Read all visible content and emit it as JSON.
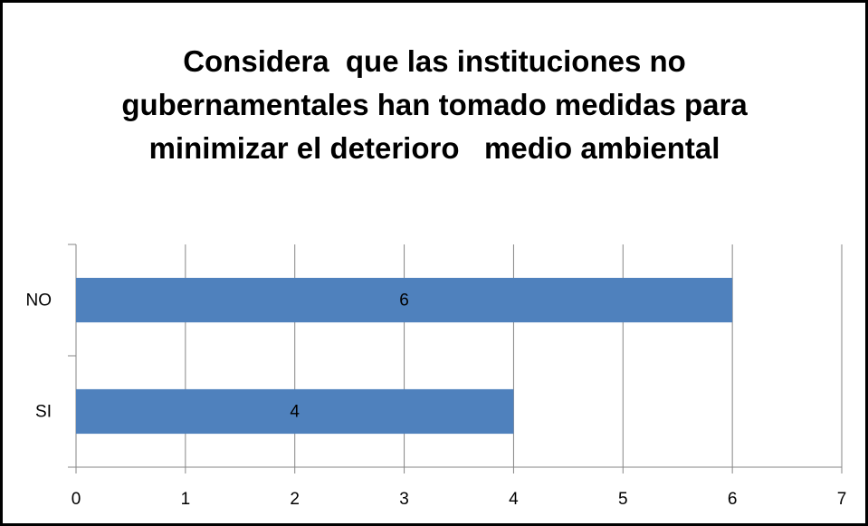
{
  "chart_data": {
    "type": "hbar",
    "title": "Considera  que las instituciones no gubernamentales han tomado medidas para minimizar el deterioro   medio ambiental",
    "categories": [
      "NO",
      "SI"
    ],
    "values": [
      6,
      4
    ],
    "color": "#4f81bd",
    "xlim": [
      0,
      7
    ],
    "xticks": [
      0,
      1,
      2,
      3,
      4,
      5,
      6,
      7
    ],
    "grid": true,
    "data_labels": true
  }
}
